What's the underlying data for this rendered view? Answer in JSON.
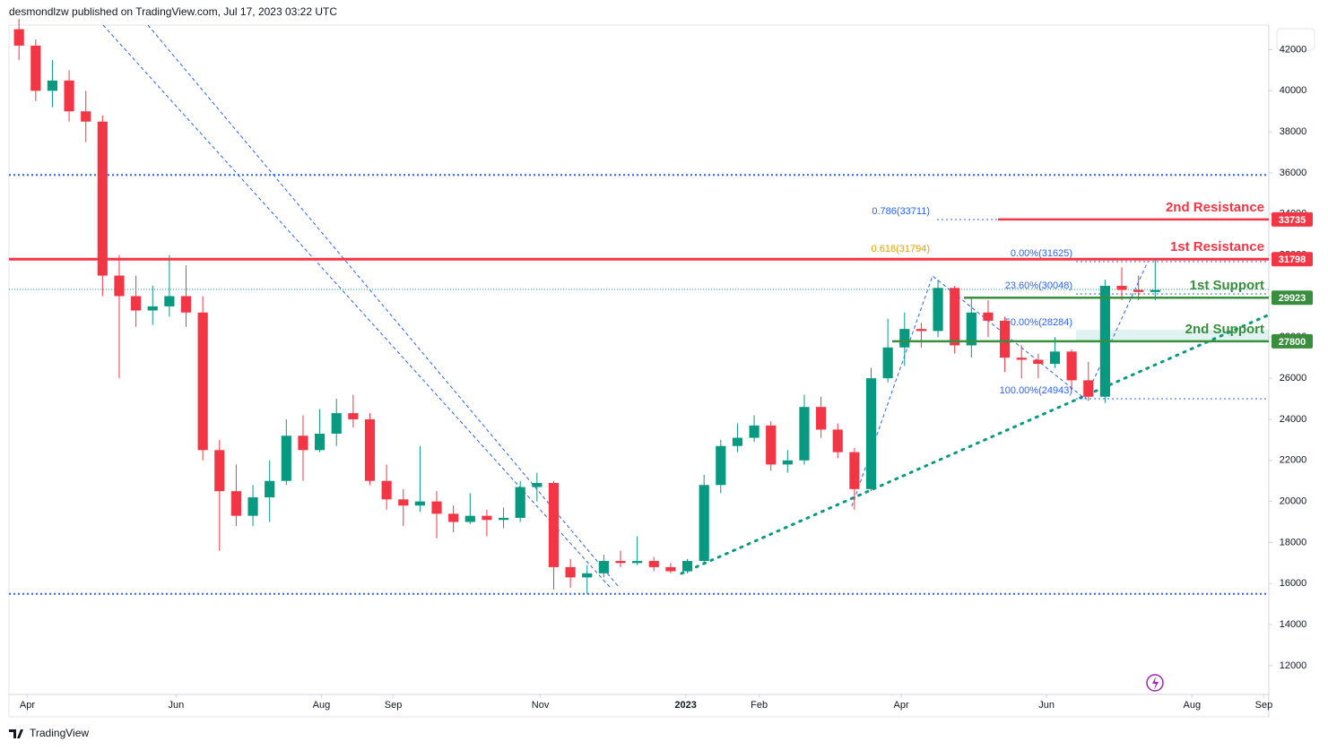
{
  "header": {
    "text": "desmondlzw published on TradingView.com, Jul 17, 2023 03:22 UTC"
  },
  "footer": {
    "brand": "TradingView"
  },
  "chart_data": {
    "type": "candlestick",
    "up_color": "#089981",
    "down_color": "#f23645",
    "x": [
      0,
      1,
      2,
      3,
      4,
      5,
      6,
      7,
      8,
      9,
      10,
      11,
      12,
      13,
      14,
      15,
      16,
      17,
      18,
      19,
      20,
      21,
      22,
      23,
      24,
      25,
      26,
      27,
      28,
      29,
      30,
      31,
      32,
      33,
      34,
      35,
      36,
      37,
      38,
      39,
      40,
      41,
      42,
      43,
      44,
      45,
      46,
      47,
      48,
      49,
      50,
      51,
      52,
      53,
      54,
      55,
      56,
      57,
      58,
      59,
      60,
      61,
      62,
      63,
      64,
      65,
      66,
      67,
      68
    ],
    "open": [
      43000,
      42200,
      40000,
      40500,
      39000,
      38500,
      31000,
      30000,
      29300,
      29500,
      30000,
      29200,
      22500,
      20500,
      19300,
      20200,
      21000,
      23200,
      22500,
      23300,
      24300,
      24000,
      21000,
      20100,
      19800,
      20000,
      19400,
      19000,
      19300,
      19100,
      19200,
      20700,
      20900,
      16800,
      16300,
      16500,
      17100,
      17000,
      17100,
      16800,
      16600,
      17100,
      20800,
      22700,
      23100,
      23700,
      21800,
      22000,
      24600,
      23500,
      22400,
      20600,
      26000,
      27500,
      28400,
      28300,
      30400,
      27600,
      29200,
      28800,
      27000,
      26900,
      26700,
      27300,
      25900,
      25100,
      30500,
      30300,
      30200
    ],
    "high": [
      43500,
      42500,
      41500,
      41000,
      40000,
      38800,
      32000,
      31000,
      30500,
      32000,
      31500,
      30000,
      23000,
      21800,
      20800,
      22000,
      24000,
      24200,
      24500,
      25000,
      25200,
      24300,
      21800,
      20600,
      22700,
      20500,
      19800,
      20400,
      19600,
      19700,
      21000,
      21400,
      21000,
      17200,
      16900,
      17400,
      17600,
      18300,
      17300,
      17000,
      17200,
      21300,
      23000,
      23800,
      24200,
      23900,
      22500,
      25200,
      25100,
      23800,
      22600,
      26500,
      28900,
      29200,
      28700,
      30800,
      30500,
      29900,
      29800,
      29000,
      27600,
      27200,
      28000,
      27400,
      26800,
      30800,
      31400,
      31000,
      31800
    ],
    "low": [
      41500,
      39500,
      39200,
      38500,
      37500,
      30000,
      26000,
      28500,
      28600,
      29000,
      28500,
      22000,
      17600,
      18800,
      18800,
      19000,
      20800,
      21000,
      22400,
      22700,
      23600,
      20800,
      19600,
      18800,
      19500,
      18200,
      18500,
      18900,
      18300,
      18700,
      19000,
      20000,
      15700,
      15800,
      15500,
      16300,
      16800,
      16900,
      16600,
      16500,
      16500,
      17000,
      20400,
      22400,
      22900,
      21500,
      21400,
      21800,
      23100,
      22100,
      19600,
      20500,
      25800,
      26600,
      27500,
      28000,
      27200,
      27000,
      28000,
      26300,
      26000,
      26000,
      26500,
      25400,
      24900,
      24800,
      29800,
      29800,
      29800
    ],
    "close": [
      42200,
      40000,
      40500,
      39000,
      38500,
      31000,
      30000,
      29300,
      29500,
      30000,
      29200,
      22500,
      20500,
      19300,
      20200,
      21000,
      23200,
      22500,
      23300,
      24300,
      24000,
      21000,
      20100,
      19800,
      20000,
      19400,
      19000,
      19300,
      19100,
      19200,
      20700,
      20900,
      16800,
      16300,
      16500,
      17100,
      17000,
      17100,
      16800,
      16600,
      17100,
      20800,
      22700,
      23100,
      23700,
      21800,
      22000,
      24600,
      23500,
      22400,
      20600,
      26000,
      27500,
      28400,
      28300,
      30400,
      27600,
      29200,
      28800,
      27000,
      26900,
      26700,
      27300,
      25900,
      25100,
      30500,
      30300,
      30200,
      30300
    ],
    "xlim": [
      -0.6,
      74.8
    ],
    "xticks": [
      {
        "value": 0.5,
        "label": "Apr"
      },
      {
        "value": 9.4,
        "label": "Jun"
      },
      {
        "value": 18.1,
        "label": "Aug"
      },
      {
        "value": 22.4,
        "label": "Sep"
      },
      {
        "value": 31.2,
        "label": "Nov"
      },
      {
        "value": 39.9,
        "label": "2023"
      },
      {
        "value": 44.3,
        "label": "Feb"
      },
      {
        "value": 52.8,
        "label": "Apr"
      },
      {
        "value": 61.5,
        "label": "Jun"
      },
      {
        "value": 70.2,
        "label": "Aug"
      },
      {
        "value": 74.5,
        "label": "Sep"
      }
    ],
    "ylim": [
      10600,
      43200
    ],
    "yticks": [
      12000,
      14000,
      16000,
      18000,
      20000,
      22000,
      24000,
      26000,
      28000,
      30000,
      32000,
      34000,
      36000,
      38000,
      40000,
      42000
    ],
    "levels": [
      {
        "name": "2nd Resistance",
        "value": 33735,
        "color": "#f23645"
      },
      {
        "name": "1st Resistance",
        "value": 31798,
        "color": "#f23645"
      },
      {
        "name": "1st Support",
        "value": 29923,
        "color": "#388e3c"
      },
      {
        "name": "2nd Support",
        "value": 27800,
        "color": "#388e3c"
      }
    ],
    "blue_levels": [
      {
        "value": 35900
      },
      {
        "value": 15500
      }
    ],
    "fib_labels": [
      "0.786(33711)",
      "0.618(31794)",
      "0.00%(31625)",
      "23.60%(30048)",
      "50.00%(28284)",
      "100.00%(24943)"
    ]
  }
}
